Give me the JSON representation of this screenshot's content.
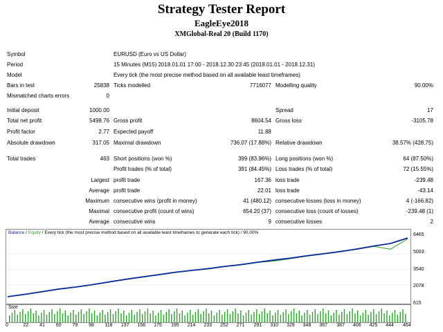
{
  "header": {
    "title": "Strategy Tester Report",
    "expert": "EagleEye2018",
    "server": "XMGlobal-Real 20 (Build 1170)"
  },
  "report": {
    "symbol_label": "Symbol",
    "symbol": "EURUSD (Euro vs US Dollar)",
    "period_label": "Period",
    "period": "15 Minutes (M15) 2018.01.01 17:00 - 2018.12.30 23:45 (2018.01.01 - 2018.12.31)",
    "model_label": "Model",
    "model": "Every tick (the most precise method based on all available least timeframes)",
    "bars_label": "Bars in test",
    "bars": "25838",
    "ticks_label": "Ticks modelled",
    "ticks": "7716077",
    "quality_label": "Modelling quality",
    "quality": "90.00%",
    "mismatch_label": "Mismatched charts errors",
    "mismatch": "0",
    "deposit_label": "Initial deposit",
    "deposit": "1000.00",
    "spread_label": "Spread",
    "spread": "17",
    "net_label": "Total net profit",
    "net": "5498.76",
    "gross_profit_label": "Gross profit",
    "gross_profit": "8604.54",
    "gross_loss_label": "Gross loss",
    "gross_loss": "-3105.78",
    "pf_label": "Profit factor",
    "pf": "2.77",
    "payoff_label": "Expected payoff",
    "payoff": "11.88",
    "abs_dd_label": "Absolute drawdown",
    "abs_dd": "317.05",
    "max_dd_label": "Maximal drawdown",
    "max_dd": "736.07 (17.88%)",
    "rel_dd_label": "Relative drawdown",
    "rel_dd": "38.57% (428.75)",
    "trades_label": "Total trades",
    "trades": "463",
    "short_label": "Short positions (won %)",
    "short": "399 (83.96%)",
    "long_label": "Long positions (won %)",
    "long": "64 (87.50%)",
    "pt_label": "Profit trades (% of total)",
    "pt": "391 (84.45%)",
    "lt_label": "Loss trades (% of total)",
    "lt": "72 (15.55%)",
    "largest_label": "Largest",
    "largest_profit_label": "profit trade",
    "largest_profit": "167.36",
    "largest_loss_label": "loss trade",
    "largest_loss": "-239.48",
    "average_label": "Average",
    "average_profit_label": "profit trade",
    "average_profit": "22.01",
    "average_loss_label": "loss trade",
    "average_loss": "-43.14",
    "maximum_label": "Maximum",
    "max_cw_label": "consecutive wins (profit in money)",
    "max_cw": "41 (480.12)",
    "max_cl_label": "consecutive losses (loss in money)",
    "max_cl": "4 (-166.82)",
    "maximal_label": "Maximal",
    "maximal_cp_label": "consecutive profit (count of wins)",
    "maximal_cp": "654.20 (37)",
    "maximal_cl_label": "consecutive loss (count of losses)",
    "maximal_cl": "-239.48 (1)",
    "avg2_label": "Average",
    "avg_cw_label": "consecutive wins",
    "avg_cw": "9",
    "avg_cl_label": "consecutive losses",
    "avg_cl": "2"
  },
  "chart": {
    "legend_balance": "Balance",
    "legend_sep": " / ",
    "legend_equity": "Equity",
    "legend_rest": " / Every tick (the most precise method based on all available least timeframes to generate each tick) / 90.00%",
    "size_label": "Size",
    "colors": {
      "balance": "#0b2a9e",
      "equity": "#27a327",
      "size_bars": "#27a327"
    },
    "y_ticks": [
      "6465",
      "5003",
      "3540",
      "2078",
      "615"
    ],
    "x_ticks": [
      "0",
      "22",
      "41",
      "60",
      "79",
      "98",
      "118",
      "137",
      "156",
      "175",
      "195",
      "214",
      "233",
      "252",
      "271",
      "291",
      "310",
      "329",
      "348",
      "367",
      "387",
      "406",
      "425",
      "444",
      "464"
    ]
  },
  "chart_data": {
    "type": "line",
    "title": "",
    "x": [
      0,
      22,
      41,
      60,
      79,
      98,
      118,
      137,
      156,
      175,
      195,
      214,
      233,
      252,
      271,
      291,
      310,
      329,
      348,
      367,
      387,
      406,
      425,
      444,
      464
    ],
    "series": [
      {
        "name": "Balance",
        "values": [
          1000,
          1250,
          1480,
          1720,
          1900,
          2120,
          2380,
          2620,
          2840,
          3050,
          3280,
          3450,
          3620,
          3820,
          3990,
          4220,
          4420,
          4600,
          4820,
          5000,
          5220,
          5450,
          5720,
          5950,
          6460
        ]
      },
      {
        "name": "Equity",
        "values": [
          1000,
          1220,
          1450,
          1700,
          1880,
          2100,
          2350,
          2600,
          2800,
          3020,
          3250,
          3430,
          3590,
          3790,
          3960,
          4190,
          4330,
          4540,
          4780,
          4980,
          5180,
          5420,
          5680,
          5420,
          6380
        ]
      }
    ],
    "ylim": [
      615,
      6465
    ],
    "xlim": [
      0,
      464
    ]
  }
}
